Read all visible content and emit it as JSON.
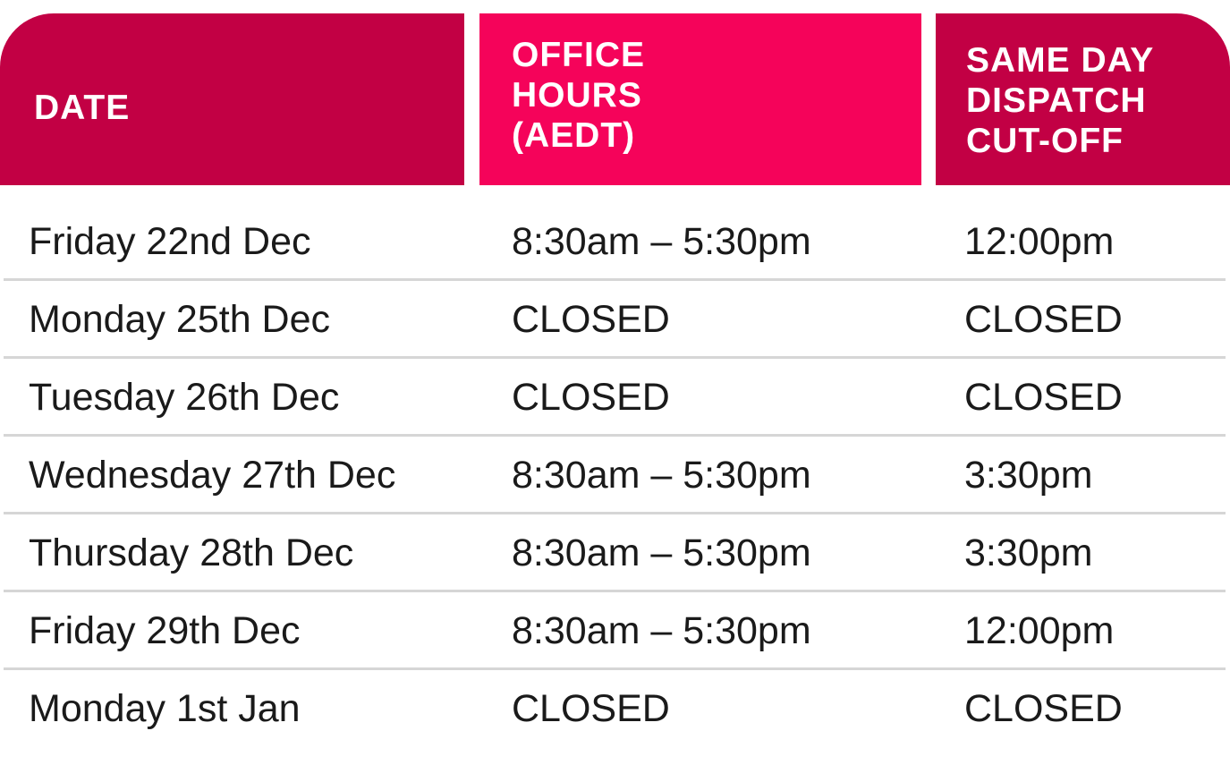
{
  "table": {
    "headers": [
      [
        "DATE"
      ],
      [
        "OFFICE",
        "HOURS",
        "(AEDT)"
      ],
      [
        "SAME DAY",
        "DISPATCH",
        "CUT-OFF"
      ]
    ],
    "rows": [
      [
        "Friday 22nd Dec",
        "8:30am – 5:30pm",
        "12:00pm"
      ],
      [
        "Monday 25th Dec",
        "CLOSED",
        "CLOSED"
      ],
      [
        "Tuesday 26th Dec",
        "CLOSED",
        "CLOSED"
      ],
      [
        "Wednesday 27th Dec",
        "8:30am – 5:30pm",
        "3:30pm"
      ],
      [
        "Thursday 28th Dec",
        "8:30am – 5:30pm",
        "3:30pm"
      ],
      [
        "Friday 29th Dec",
        "8:30am – 5:30pm",
        "12:00pm"
      ],
      [
        "Monday 1st Jan",
        "CLOSED",
        "CLOSED"
      ]
    ]
  }
}
